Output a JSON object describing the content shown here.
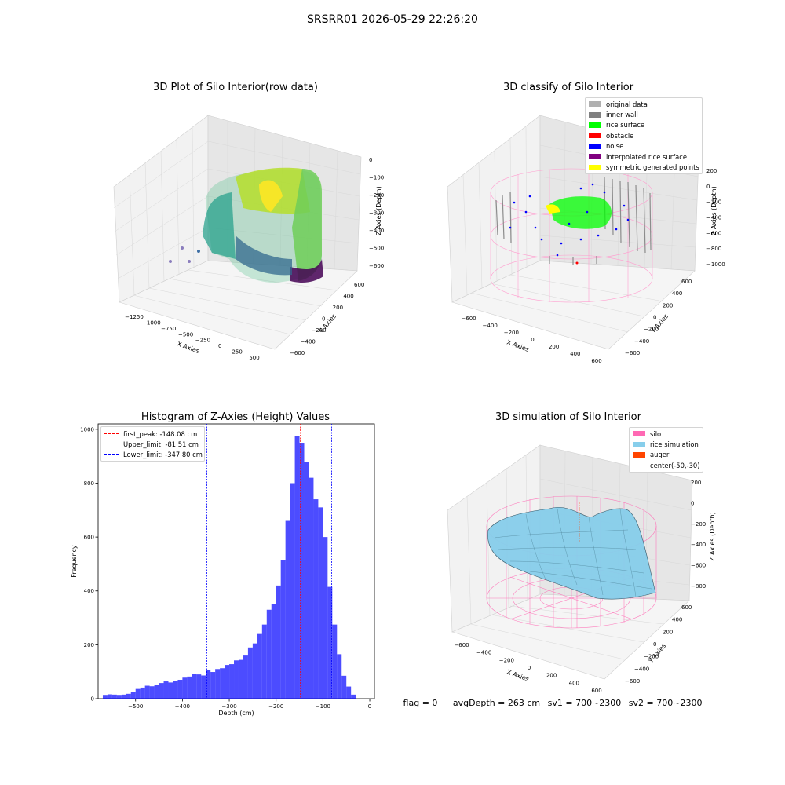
{
  "suptitle": "SRSRR01 2026-05-29 22:26:20",
  "panels": {
    "raw": {
      "title": "3D Plot of Silo Interior(row data)",
      "x_label": "X Axies",
      "y_label": "Y Axies",
      "z_label": "Z Axies (Depth)",
      "x_ticks": [
        "−1250",
        "−1000",
        "−750",
        "−500",
        "−250",
        "0",
        "250",
        "500"
      ],
      "y_ticks": [
        "−600",
        "−400",
        "−200",
        "0",
        "200",
        "400",
        "600"
      ],
      "z_ticks": [
        "0",
        "−100",
        "−200",
        "−300",
        "−400",
        "−500",
        "−600"
      ]
    },
    "classify": {
      "title": "3D classify of Silo Interior",
      "x_label": "X Axies",
      "y_label": "Y Axies",
      "z_label": "Z Axies (Depth)",
      "x_ticks": [
        "−600",
        "−400",
        "−200",
        "0",
        "200",
        "400",
        "600"
      ],
      "y_ticks": [
        "−600",
        "−400",
        "−200",
        "0",
        "200",
        "400",
        "600"
      ],
      "z_ticks": [
        "200",
        "0",
        "−200",
        "−400",
        "−600",
        "−800",
        "−1000"
      ],
      "legend": [
        {
          "label": "original data",
          "color": "#b0b0b0"
        },
        {
          "label": "inner wall",
          "color": "#808080"
        },
        {
          "label": "rice surface",
          "color": "#00ff00"
        },
        {
          "label": "obstacle",
          "color": "#ff0000"
        },
        {
          "label": "noise",
          "color": "#0000ff"
        },
        {
          "label": "interpolated rice surface",
          "color": "#800080"
        },
        {
          "label": "symmetric generated points",
          "color": "#ffff00"
        }
      ]
    },
    "histogram": {
      "title": "Histogram of Z-Axies (Height) Values",
      "legend": [
        {
          "label": "first_peak: -148.08 cm",
          "color": "#ff0000"
        },
        {
          "label": "Upper_limit: -81.51 cm",
          "color": "#0000ff"
        },
        {
          "label": "Lower_limit: -347.80 cm",
          "color": "#0000ff"
        }
      ]
    },
    "simulation": {
      "title": "3D simulation of Silo Interior",
      "x_label": "X Axies",
      "y_label": "Y Axies",
      "z_label": "Z Axies (Depth)",
      "x_ticks": [
        "−600",
        "−400",
        "−200",
        "0",
        "200",
        "400",
        "600"
      ],
      "y_ticks": [
        "−600",
        "−400",
        "−200",
        "0",
        "200",
        "400",
        "600"
      ],
      "z_ticks": [
        "200",
        "0",
        "−200",
        "−400",
        "−600",
        "−800"
      ],
      "legend": [
        {
          "label": "silo",
          "color": "#ff69b4"
        },
        {
          "label": "rice simulation",
          "color": "#87ceeb"
        },
        {
          "label": "auger",
          "color": "#ff4500"
        },
        {
          "label": "center(-50,-30)",
          "color": "transparent"
        }
      ]
    }
  },
  "footer": {
    "flag": "flag = 0",
    "avg_depth": "avgDepth = 263 cm",
    "sv1": "sv1 = 700~2300",
    "sv2": "sv2 = 700~2300"
  },
  "chart_data": [
    {
      "type": "histogram",
      "title": "Histogram of Z-Axies (Height) Values",
      "xlabel": "Depth (cm)",
      "ylabel": "Frequency",
      "xlim": [
        -580,
        10
      ],
      "ylim": [
        0,
        1020
      ],
      "x_ticks": [
        -500,
        -400,
        -300,
        -200,
        -100,
        0
      ],
      "y_ticks": [
        0,
        200,
        400,
        600,
        800,
        1000
      ],
      "bin_edges": [
        -570,
        -560,
        -550,
        -540,
        -530,
        -520,
        -510,
        -500,
        -490,
        -480,
        -470,
        -460,
        -450,
        -440,
        -430,
        -420,
        -410,
        -400,
        -390,
        -380,
        -370,
        -360,
        -350,
        -340,
        -330,
        -320,
        -310,
        -300,
        -290,
        -280,
        -270,
        -260,
        -250,
        -240,
        -230,
        -220,
        -210,
        -200,
        -190,
        -180,
        -170,
        -160,
        -150,
        -140,
        -130,
        -120,
        -110,
        -100,
        -90,
        -80,
        -70,
        -60,
        -50,
        -40,
        -30,
        -20,
        -10,
        0
      ],
      "values": [
        14,
        16,
        15,
        14,
        15,
        18,
        26,
        36,
        41,
        48,
        46,
        52,
        58,
        64,
        60,
        65,
        70,
        78,
        82,
        91,
        90,
        86,
        105,
        99,
        110,
        113,
        125,
        128,
        142,
        144,
        160,
        190,
        205,
        240,
        275,
        330,
        350,
        420,
        515,
        660,
        800,
        975,
        950,
        880,
        820,
        740,
        710,
        600,
        415,
        275,
        165,
        85,
        45,
        15,
        0,
        0,
        0
      ],
      "bar_color": "#0000ff",
      "bar_alpha": 0.7,
      "vlines": [
        {
          "name": "first_peak",
          "x": -148.08,
          "color": "#ff0000"
        },
        {
          "name": "Upper_limit",
          "x": -81.51,
          "color": "#0000ff"
        },
        {
          "name": "Lower_limit",
          "x": -347.8,
          "color": "#0000ff"
        }
      ],
      "legend_position": "top-left"
    }
  ]
}
